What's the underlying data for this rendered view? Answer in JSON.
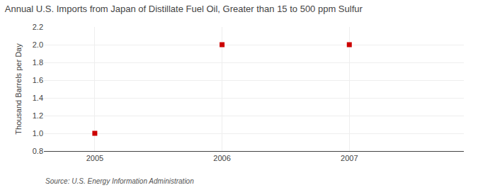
{
  "chart_data": {
    "type": "scatter",
    "title": "Annual U.S. Imports from Japan of Distillate Fuel Oil, Greater than 15 to 500 ppm Sulfur",
    "ylabel": "Thousand Barrels per Day",
    "annotations": [
      "Source: U.S. Energy Information Administration"
    ],
    "x": [
      2005,
      2006,
      2007
    ],
    "values": [
      1.0,
      2.0,
      2.0
    ],
    "color": "#cc0000",
    "marker": "square",
    "xlim": [
      2004.6,
      2007.9
    ],
    "xticks": [
      2005,
      2006,
      2007
    ],
    "ylim": [
      0.8,
      2.2
    ],
    "yticks": [
      0.8,
      {
        "value": 1.0,
        "label": "1.0"
      },
      1.2,
      1.4,
      1.6,
      1.8,
      {
        "value": 2.0,
        "label": "2.0"
      },
      2.2
    ],
    "grid": true
  }
}
